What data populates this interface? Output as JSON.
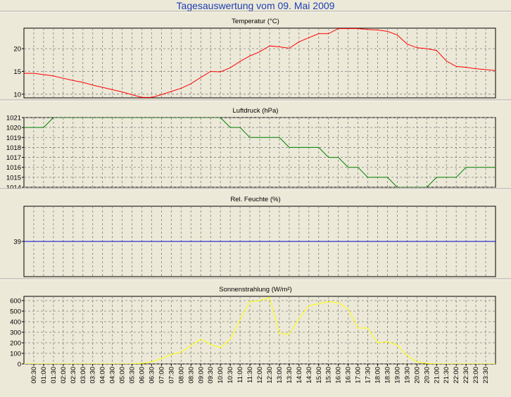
{
  "page": {
    "title": "Tagesauswertung vom 09. Mai 2009"
  },
  "colors": {
    "background": "#ECE9D8",
    "plot_bg": "#ECE9D8",
    "grid": "#808080",
    "temperature": "#ff0000",
    "pressure": "#008000",
    "humidity": "#0000cc",
    "radiation": "#ffff00",
    "title_text": "#1f3fb4"
  },
  "time_labels": [
    "00:30",
    "01:00",
    "01:30",
    "02:00",
    "02:30",
    "03:00",
    "03:30",
    "04:00",
    "04:30",
    "05:00",
    "05:30",
    "06:00",
    "06:30",
    "07:00",
    "07:30",
    "08:00",
    "08:30",
    "09:00",
    "09:30",
    "10:00",
    "10:30",
    "11:00",
    "11:30",
    "12:00",
    "12:30",
    "13:00",
    "13:30",
    "14:00",
    "14:30",
    "15:00",
    "15:30",
    "16:00",
    "16:30",
    "17:00",
    "17:30",
    "18:00",
    "18:30",
    "19:00",
    "19:30",
    "20:00",
    "20:30",
    "21:00",
    "21:30",
    "22:00",
    "22:30",
    "23:00",
    "23:30"
  ],
  "chart_data": [
    {
      "type": "line",
      "title": "Temperatur (°C)",
      "ylim": [
        9.2,
        24.5
      ],
      "yticks": [
        10,
        15,
        20
      ],
      "grid": true,
      "x": [
        "00:00",
        "00:30",
        "01:00",
        "01:30",
        "02:00",
        "02:30",
        "03:00",
        "03:30",
        "04:00",
        "04:30",
        "05:00",
        "05:30",
        "06:00",
        "06:30",
        "07:00",
        "07:30",
        "08:00",
        "08:30",
        "09:00",
        "09:30",
        "10:00",
        "10:30",
        "11:00",
        "11:30",
        "12:00",
        "12:30",
        "13:00",
        "13:30",
        "14:00",
        "14:30",
        "15:00",
        "15:30",
        "16:00",
        "16:30",
        "17:00",
        "17:30",
        "18:00",
        "18:30",
        "19:00",
        "19:30",
        "20:00",
        "20:30",
        "21:00",
        "21:30",
        "22:00",
        "22:30",
        "23:00",
        "23:30",
        "24:00"
      ],
      "series": [
        {
          "values": [
            14.6,
            14.6,
            14.3,
            14.0,
            13.5,
            13.0,
            12.6,
            12.0,
            11.5,
            11.0,
            10.5,
            9.9,
            9.3,
            9.3,
            9.9,
            10.6,
            11.3,
            12.3,
            13.7,
            15.0,
            14.9,
            15.8,
            17.2,
            18.4,
            19.3,
            20.6,
            20.4,
            20.1,
            21.5,
            22.4,
            23.3,
            23.3,
            24.4,
            24.4,
            24.4,
            24.2,
            24.1,
            23.8,
            23.0,
            21.0,
            20.2,
            20.0,
            19.6,
            17.3,
            16.1,
            15.9,
            15.6,
            15.4,
            15.2
          ]
        }
      ]
    },
    {
      "type": "line",
      "title": "Luftdruck (hPa)",
      "ylim": [
        1014,
        1021
      ],
      "yticks": [
        1014,
        1015,
        1016,
        1017,
        1018,
        1019,
        1020,
        1021
      ],
      "grid": true,
      "x": [
        "00:00",
        "01:00",
        "01:30",
        "10:00",
        "10:30",
        "11:00",
        "11:30",
        "12:30",
        "13:00",
        "13:30",
        "14:00",
        "15:00",
        "15:30",
        "16:00",
        "16:30",
        "17:00",
        "17:30",
        "18:00",
        "18:30",
        "19:00",
        "19:30",
        "20:30",
        "21:00",
        "22:00",
        "22:30",
        "24:00"
      ],
      "series": [
        {
          "values": [
            1020,
            1020,
            1021,
            1021,
            1020,
            1020,
            1019,
            1019,
            1019,
            1018,
            1018,
            1018,
            1017,
            1017,
            1016,
            1016,
            1015,
            1015,
            1015,
            1014,
            1014,
            1014,
            1015,
            1015,
            1016,
            1016
          ]
        }
      ]
    },
    {
      "type": "line",
      "title": "Rel. Feuchte (%)",
      "ylim": [
        0,
        78
      ],
      "yticks": [
        39
      ],
      "grid": true,
      "x": [
        "00:00",
        "24:00"
      ],
      "series": [
        {
          "values": [
            39,
            39
          ]
        }
      ]
    },
    {
      "type": "line",
      "title": "Sonnenstrahlung (W/m²)",
      "ylim": [
        0,
        640
      ],
      "yticks": [
        0,
        100,
        200,
        300,
        400,
        500,
        600
      ],
      "grid": true,
      "x": [
        "00:00",
        "00:30",
        "01:00",
        "01:30",
        "02:00",
        "02:30",
        "03:00",
        "03:30",
        "04:00",
        "04:30",
        "05:00",
        "05:30",
        "06:00",
        "06:30",
        "07:00",
        "07:30",
        "08:00",
        "08:30",
        "09:00",
        "09:30",
        "10:00",
        "10:30",
        "11:00",
        "11:30",
        "12:00",
        "12:30",
        "13:00",
        "13:30",
        "14:00",
        "14:30",
        "15:00",
        "15:30",
        "16:00",
        "16:30",
        "17:00",
        "17:30",
        "18:00",
        "18:30",
        "19:00",
        "19:30",
        "20:00",
        "20:30",
        "21:00",
        "21:30",
        "22:00",
        "22:30",
        "23:00",
        "23:30",
        "24:00"
      ],
      "series": [
        {
          "values": [
            0,
            0,
            0,
            0,
            0,
            0,
            0,
            0,
            0,
            0,
            0,
            0,
            5,
            20,
            50,
            90,
            110,
            175,
            235,
            185,
            155,
            230,
            420,
            590,
            600,
            630,
            290,
            280,
            430,
            550,
            570,
            590,
            580,
            520,
            340,
            340,
            200,
            210,
            180,
            80,
            20,
            5,
            0,
            0,
            0,
            0,
            0,
            0,
            0
          ]
        }
      ]
    }
  ]
}
